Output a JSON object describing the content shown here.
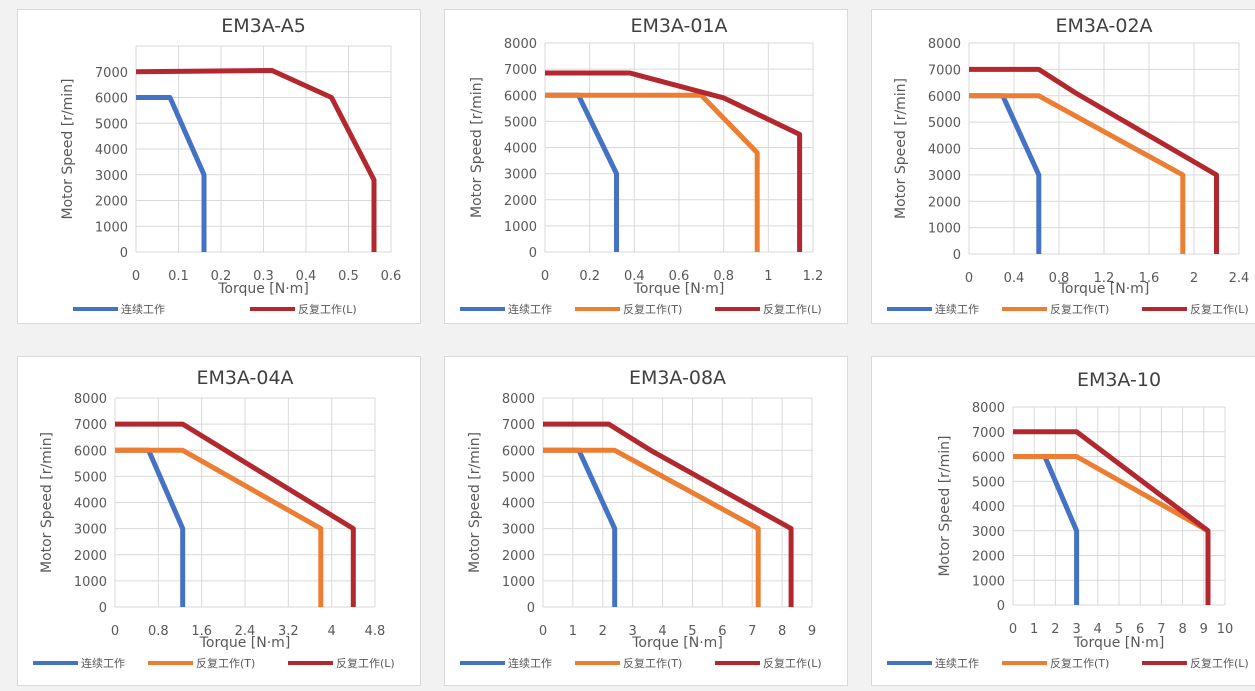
{
  "colors": {
    "cont": "#4472c4",
    "T": "#ed7d31",
    "L": "#b3282e",
    "grid": "#d9d9d9"
  },
  "chart_data": [
    {
      "type": "line",
      "title": "EM3A-A5",
      "xlabel": "Torque [N·m]",
      "ylabel": "Motor Speed [r/min]",
      "xlim": [
        0,
        0.6
      ],
      "ylim": [
        0,
        8000
      ],
      "xticks": [
        "0",
        "0.1",
        "0.2",
        "0.3",
        "0.4",
        "0.5",
        "0.6"
      ],
      "xtick_values": [
        0,
        0.1,
        0.2,
        0.3,
        0.4,
        0.5,
        0.6
      ],
      "yticks": [
        "0",
        "1000",
        "2000",
        "3000",
        "4000",
        "5000",
        "6000",
        "7000"
      ],
      "ytick_values": [
        0,
        1000,
        2000,
        3000,
        4000,
        5000,
        6000,
        7000
      ],
      "series": [
        {
          "name": "连续工作",
          "color": "cont",
          "points": [
            [
              0,
              6000
            ],
            [
              0.08,
              6000
            ],
            [
              0.16,
              3000
            ],
            [
              0.16,
              0
            ]
          ]
        },
        {
          "name": "反复工作(L)",
          "color": "L",
          "points": [
            [
              0,
              7000
            ],
            [
              0.32,
              7050
            ],
            [
              0.46,
              6000
            ],
            [
              0.56,
              2800
            ],
            [
              0.56,
              0
            ]
          ]
        }
      ]
    },
    {
      "type": "line",
      "title": "EM3A-01A",
      "xlabel": "Torque [N·m]",
      "ylabel": "Motor Speed [r/min]",
      "xlim": [
        0,
        1.2
      ],
      "ylim": [
        0,
        8000
      ],
      "xticks": [
        "0",
        "0.2",
        "0.4",
        "0.6",
        "0.8",
        "1",
        "1.2"
      ],
      "xtick_values": [
        0,
        0.2,
        0.4,
        0.6,
        0.8,
        1,
        1.2
      ],
      "yticks": [
        "0",
        "1000",
        "2000",
        "3000",
        "4000",
        "5000",
        "6000",
        "7000",
        "8000"
      ],
      "ytick_values": [
        0,
        1000,
        2000,
        3000,
        4000,
        5000,
        6000,
        7000,
        8000
      ],
      "series": [
        {
          "name": "连续工作",
          "color": "cont",
          "points": [
            [
              0,
              6000
            ],
            [
              0.15,
              6000
            ],
            [
              0.32,
              3000
            ],
            [
              0.32,
              0
            ]
          ]
        },
        {
          "name": "反复工作(T)",
          "color": "T",
          "points": [
            [
              0,
              6000
            ],
            [
              0.7,
              6000
            ],
            [
              0.95,
              3800
            ],
            [
              0.95,
              0
            ]
          ]
        },
        {
          "name": "反复工作(L)",
          "color": "L",
          "points": [
            [
              0,
              6850
            ],
            [
              0.38,
              6850
            ],
            [
              0.8,
              5900
            ],
            [
              1.14,
              4500
            ],
            [
              1.14,
              0
            ]
          ]
        }
      ]
    },
    {
      "type": "line",
      "title": "EM3A-02A",
      "xlabel": "Torque [N·m]",
      "ylabel": "Motor Speed [r/min]",
      "xlim": [
        0,
        2.4
      ],
      "ylim": [
        0,
        8000
      ],
      "xticks": [
        "0",
        "0.4",
        "0.8",
        "1.2",
        "1.6",
        "2",
        "2.4"
      ],
      "xtick_values": [
        0,
        0.4,
        0.8,
        1.2,
        1.6,
        2,
        2.4
      ],
      "yticks": [
        "0",
        "1000",
        "2000",
        "3000",
        "4000",
        "5000",
        "6000",
        "7000",
        "8000"
      ],
      "ytick_values": [
        0,
        1000,
        2000,
        3000,
        4000,
        5000,
        6000,
        7000,
        8000
      ],
      "series": [
        {
          "name": "连续工作",
          "color": "cont",
          "points": [
            [
              0,
              6000
            ],
            [
              0.3,
              6000
            ],
            [
              0.62,
              3000
            ],
            [
              0.62,
              0
            ]
          ]
        },
        {
          "name": "反复工作(T)",
          "color": "T",
          "points": [
            [
              0,
              6000
            ],
            [
              0.62,
              6000
            ],
            [
              1.9,
              3000
            ],
            [
              1.9,
              0
            ]
          ]
        },
        {
          "name": "反复工作(L)",
          "color": "L",
          "points": [
            [
              0,
              7000
            ],
            [
              0.62,
              7000
            ],
            [
              0.95,
              6100
            ],
            [
              2.2,
              3000
            ],
            [
              2.2,
              0
            ]
          ]
        }
      ]
    },
    {
      "type": "line",
      "title": "EM3A-04A",
      "xlabel": "Torque [N·m]",
      "ylabel": "Motor Speed [r/min]",
      "xlim": [
        0,
        4.8
      ],
      "ylim": [
        0,
        8000
      ],
      "xticks": [
        "0",
        "0.8",
        "1.6",
        "2.4",
        "3.2",
        "4",
        "4.8"
      ],
      "xtick_values": [
        0,
        0.8,
        1.6,
        2.4,
        3.2,
        4,
        4.8
      ],
      "yticks": [
        "0",
        "1000",
        "2000",
        "3000",
        "4000",
        "5000",
        "6000",
        "7000",
        "8000"
      ],
      "ytick_values": [
        0,
        1000,
        2000,
        3000,
        4000,
        5000,
        6000,
        7000,
        8000
      ],
      "series": [
        {
          "name": "连续工作",
          "color": "cont",
          "points": [
            [
              0,
              6000
            ],
            [
              0.62,
              6000
            ],
            [
              1.25,
              3000
            ],
            [
              1.25,
              0
            ]
          ]
        },
        {
          "name": "反复工作(T)",
          "color": "T",
          "points": [
            [
              0,
              6000
            ],
            [
              1.25,
              6000
            ],
            [
              3.8,
              3000
            ],
            [
              3.8,
              0
            ]
          ]
        },
        {
          "name": "反复工作(L)",
          "color": "L",
          "points": [
            [
              0,
              7000
            ],
            [
              1.25,
              7000
            ],
            [
              4.4,
              3000
            ],
            [
              4.4,
              0
            ]
          ]
        }
      ]
    },
    {
      "type": "line",
      "title": "EM3A-08A",
      "xlabel": "Torque [N·m]",
      "ylabel": "Motor Speed [r/min]",
      "xlim": [
        0,
        9
      ],
      "ylim": [
        0,
        8000
      ],
      "xticks": [
        "0",
        "1",
        "2",
        "3",
        "4",
        "5",
        "6",
        "7",
        "8",
        "9"
      ],
      "xtick_values": [
        0,
        1,
        2,
        3,
        4,
        5,
        6,
        7,
        8,
        9
      ],
      "yticks": [
        "0",
        "1000",
        "2000",
        "3000",
        "4000",
        "5000",
        "6000",
        "7000",
        "8000"
      ],
      "ytick_values": [
        0,
        1000,
        2000,
        3000,
        4000,
        5000,
        6000,
        7000,
        8000
      ],
      "series": [
        {
          "name": "连续工作",
          "color": "cont",
          "points": [
            [
              0,
              6000
            ],
            [
              1.2,
              6000
            ],
            [
              2.4,
              3000
            ],
            [
              2.4,
              0
            ]
          ]
        },
        {
          "name": "反复工作(T)",
          "color": "T",
          "points": [
            [
              0,
              6000
            ],
            [
              2.4,
              6000
            ],
            [
              7.2,
              3000
            ],
            [
              7.2,
              0
            ]
          ]
        },
        {
          "name": "反复工作(L)",
          "color": "L",
          "points": [
            [
              0,
              7000
            ],
            [
              2.2,
              7000
            ],
            [
              3.6,
              6000
            ],
            [
              8.3,
              3000
            ],
            [
              8.3,
              0
            ]
          ]
        }
      ]
    },
    {
      "type": "line",
      "title": "EM3A-10",
      "xlabel": "Torque [N·m]",
      "ylabel": "Motor Speed [r/min]",
      "xlim": [
        0,
        10
      ],
      "ylim": [
        0,
        8000
      ],
      "xticks": [
        "0",
        "1",
        "2",
        "3",
        "4",
        "5",
        "6",
        "7",
        "8",
        "9",
        "10"
      ],
      "xtick_values": [
        0,
        1,
        2,
        3,
        4,
        5,
        6,
        7,
        8,
        9,
        10
      ],
      "yticks": [
        "0",
        "1000",
        "2000",
        "3000",
        "4000",
        "5000",
        "6000",
        "7000",
        "8000"
      ],
      "ytick_values": [
        0,
        1000,
        2000,
        3000,
        4000,
        5000,
        6000,
        7000,
        8000
      ],
      "series": [
        {
          "name": "连续工作",
          "color": "cont",
          "points": [
            [
              0,
              6000
            ],
            [
              1.5,
              6000
            ],
            [
              3,
              3000
            ],
            [
              3,
              0
            ]
          ]
        },
        {
          "name": "反复工作(T)",
          "color": "T",
          "points": [
            [
              0,
              6000
            ],
            [
              3,
              6000
            ],
            [
              9.2,
              3000
            ],
            [
              9.2,
              0
            ]
          ]
        },
        {
          "name": "反复工作(L)",
          "color": "L",
          "points": [
            [
              0,
              7000
            ],
            [
              3,
              7000
            ],
            [
              9.2,
              3000
            ],
            [
              9.2,
              0
            ]
          ]
        }
      ]
    }
  ]
}
